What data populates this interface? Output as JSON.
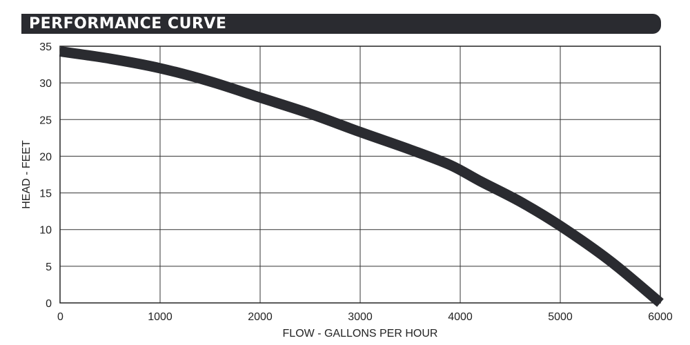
{
  "chart_data": {
    "type": "line",
    "title": "PERFORMANCE CURVE",
    "xlabel": "FLOW - GALLONS PER HOUR",
    "ylabel": "HEAD - FEET",
    "xlim": [
      0,
      6000
    ],
    "ylim": [
      0,
      35
    ],
    "xticks": [
      0,
      1000,
      2000,
      3000,
      4000,
      5000,
      6000
    ],
    "yticks": [
      0,
      5,
      10,
      15,
      20,
      25,
      30,
      35
    ],
    "grid": true,
    "legend": "none",
    "series": [
      {
        "color": "#2a2b30",
        "x": [
          0,
          500,
          1000,
          1500,
          2000,
          2500,
          3000,
          3500,
          3900,
          4200,
          4600,
          5000,
          5500,
          6000
        ],
        "y": [
          34.3,
          33.3,
          32,
          30.2,
          28,
          25.8,
          23.3,
          20.9,
          18.8,
          16.6,
          13.8,
          10.5,
          5.7,
          0
        ]
      }
    ]
  }
}
